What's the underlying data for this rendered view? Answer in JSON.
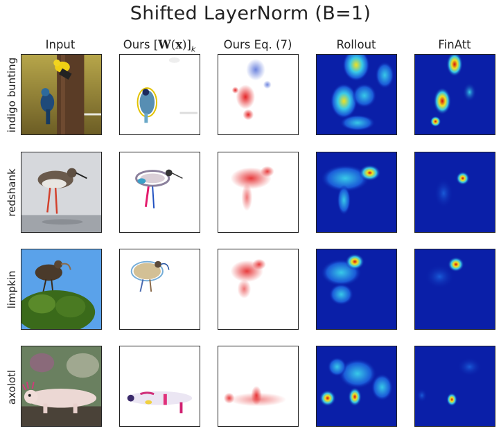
{
  "title": "Shifted LayerNorm (B=1)",
  "columns": {
    "input": "Input",
    "ours_w_prefix": "Ours ",
    "ours_w_math_open": "[",
    "ours_w_math_bold": "W",
    "ours_w_math_mid": "(",
    "ours_w_math_bold2": "x",
    "ours_w_math_close": ")]",
    "ours_w_math_sub": "k",
    "ours_eq": "Ours Eq. (7)",
    "rollout": "Rollout",
    "finatt": "FinAtt"
  },
  "rows": [
    {
      "label": "indigo bunting"
    },
    {
      "label": "redshank"
    },
    {
      "label": "limpkin"
    },
    {
      "label": "axolotl"
    }
  ],
  "colors": {
    "heat_background": "#0a1fa8",
    "heat_low": "#1a5bd8",
    "heat_mid": "#38c9e8",
    "heat_high": "#f0e020",
    "heat_peak": "#d01010",
    "attr_positive": "#e31a1c",
    "attr_negative": "#3050d0"
  },
  "icons": {
    "panels": "image-panel-icon"
  }
}
